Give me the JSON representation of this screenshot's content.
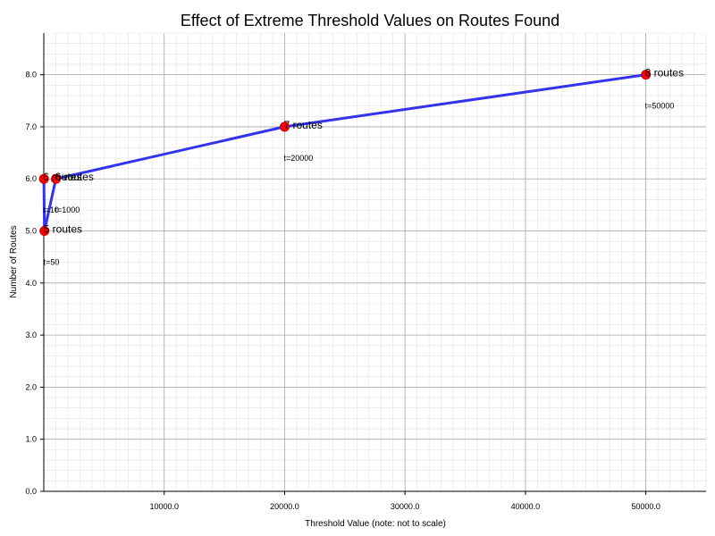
{
  "chart_data": {
    "type": "line",
    "title": "Effect of Extreme Threshold Values on Routes Found",
    "xlabel": "Threshold Value (note: not to scale)",
    "ylabel": "Number of Routes",
    "xlim": [
      0,
      55000
    ],
    "ylim": [
      0,
      8.8
    ],
    "x_ticks": [
      10000,
      20000,
      30000,
      40000,
      50000
    ],
    "x_tick_labels": [
      "10000.0",
      "20000.0",
      "30000.0",
      "40000.0",
      "50000.0"
    ],
    "y_ticks": [
      0,
      1,
      2,
      3,
      4,
      5,
      6,
      7,
      8
    ],
    "y_tick_labels": [
      "0.0",
      "1.0",
      "2.0",
      "3.0",
      "4.0",
      "5.0",
      "6.0",
      "7.0",
      "8.0"
    ],
    "grid": true,
    "series": [
      {
        "color": "#3333ee",
        "marker_color": "#ff0000",
        "points": [
          {
            "x": 10,
            "y": 6,
            "label": "6 routes",
            "threshold_label": "t=10"
          },
          {
            "x": 50,
            "y": 5,
            "label": "5 routes",
            "threshold_label": "t=50"
          },
          {
            "x": 1000,
            "y": 6,
            "label": "6 routes",
            "threshold_label": "t=1000"
          },
          {
            "x": 20000,
            "y": 7,
            "label": "7 routes",
            "threshold_label": "t=20000"
          },
          {
            "x": 50000,
            "y": 8,
            "label": "8 routes",
            "threshold_label": "t=50000"
          }
        ]
      }
    ]
  }
}
